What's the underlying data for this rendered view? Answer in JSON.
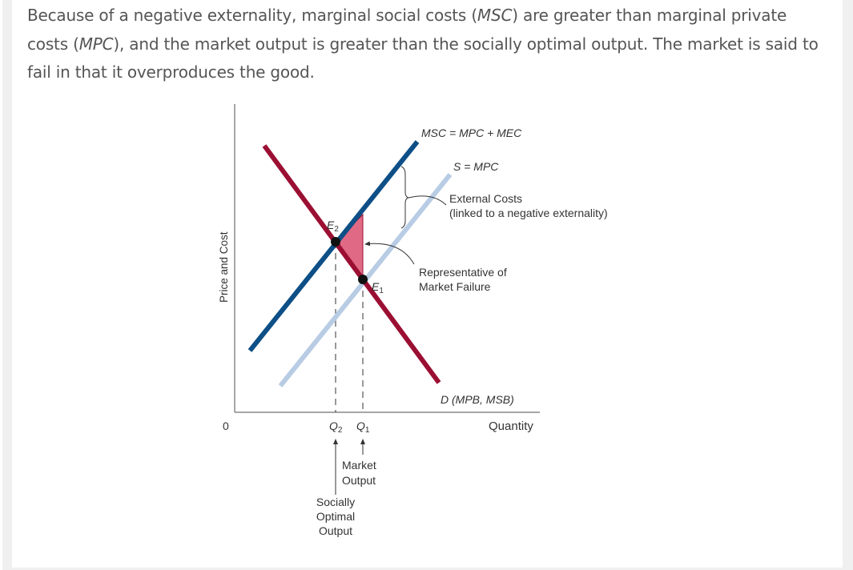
{
  "intro": {
    "p1": "Because of a negative externality, marginal social costs (",
    "msc_abbr": "MSC",
    "p2": ") are greater than marginal private costs (",
    "mpc_abbr": "MPC",
    "p3": "), and the market output is greater than the socially optimal output. The market is said to fail in that it overproduces the good."
  },
  "diagram": {
    "y_axis_label": "Price and Cost",
    "x_axis_label": "Quantity",
    "origin_label": "0",
    "msc_label": "MSC = MPC + MEC",
    "supply_label": "S = MPC",
    "demand_label": "D (MPB, MSB)",
    "external_costs_line1": "External Costs",
    "external_costs_line2": "(linked to a negative externality)",
    "market_failure_line1": "Representative of",
    "market_failure_line2": "Market Failure",
    "e2_label": "E",
    "e2_sub": "2",
    "e1_label": "E",
    "e1_sub": "1",
    "q2_label": "Q",
    "q2_sub": "2",
    "q1_label": "Q",
    "q1_sub": "1",
    "market_output_line1": "Market",
    "market_output_line2": "Output",
    "social_output_line1": "Socially",
    "social_output_line2": "Optimal",
    "social_output_line3": "Output",
    "colors": {
      "msc": "#0d4f86",
      "supply": "#b8cce4",
      "demand": "#9b0f33",
      "failure_area": "#e06a85"
    }
  }
}
